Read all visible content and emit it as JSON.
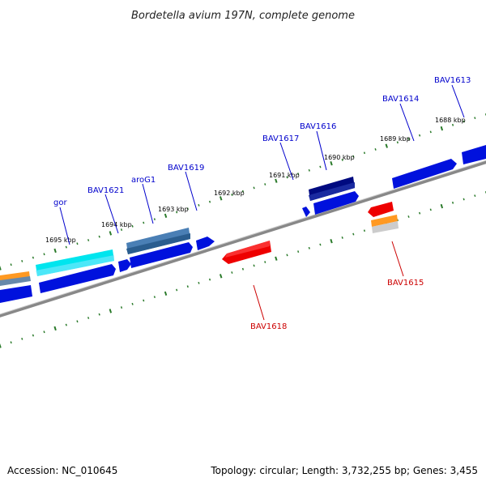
{
  "title": "Bordetella avium 197N, complete genome",
  "footer": {
    "accession": "Accession: NC_010645",
    "summary": "Topology: circular; Length: 3,732,255 bp; Genes: 3,455"
  },
  "colors": {
    "backbone": "#888888",
    "tick": "#2a7a2a",
    "label_blue": "#0000cc",
    "label_red": "#cc0000"
  },
  "ticks": [
    {
      "kbp": 1688,
      "label": "1688 kbp"
    },
    {
      "kbp": 1689,
      "label": "1689 kbp"
    },
    {
      "kbp": 1690,
      "label": "1690 kbp"
    },
    {
      "kbp": 1691,
      "label": "1691 kbp"
    },
    {
      "kbp": 1692,
      "label": "1692 kbp"
    },
    {
      "kbp": 1693,
      "label": "1693 kbp"
    },
    {
      "kbp": 1694,
      "label": "1694 kbp"
    },
    {
      "kbp": 1695,
      "label": "1695 kbp"
    }
  ],
  "gene_labels": [
    {
      "name": "BAV1613",
      "color": "blue"
    },
    {
      "name": "BAV1614",
      "color": "blue"
    },
    {
      "name": "BAV1615",
      "color": "red"
    },
    {
      "name": "BAV1616",
      "color": "blue"
    },
    {
      "name": "BAV1617",
      "color": "blue"
    },
    {
      "name": "BAV1618",
      "color": "red"
    },
    {
      "name": "BAV1619",
      "color": "blue"
    },
    {
      "name": "aroG1",
      "color": "blue"
    },
    {
      "name": "BAV1621",
      "color": "blue"
    },
    {
      "name": "gor",
      "color": "blue"
    }
  ]
}
